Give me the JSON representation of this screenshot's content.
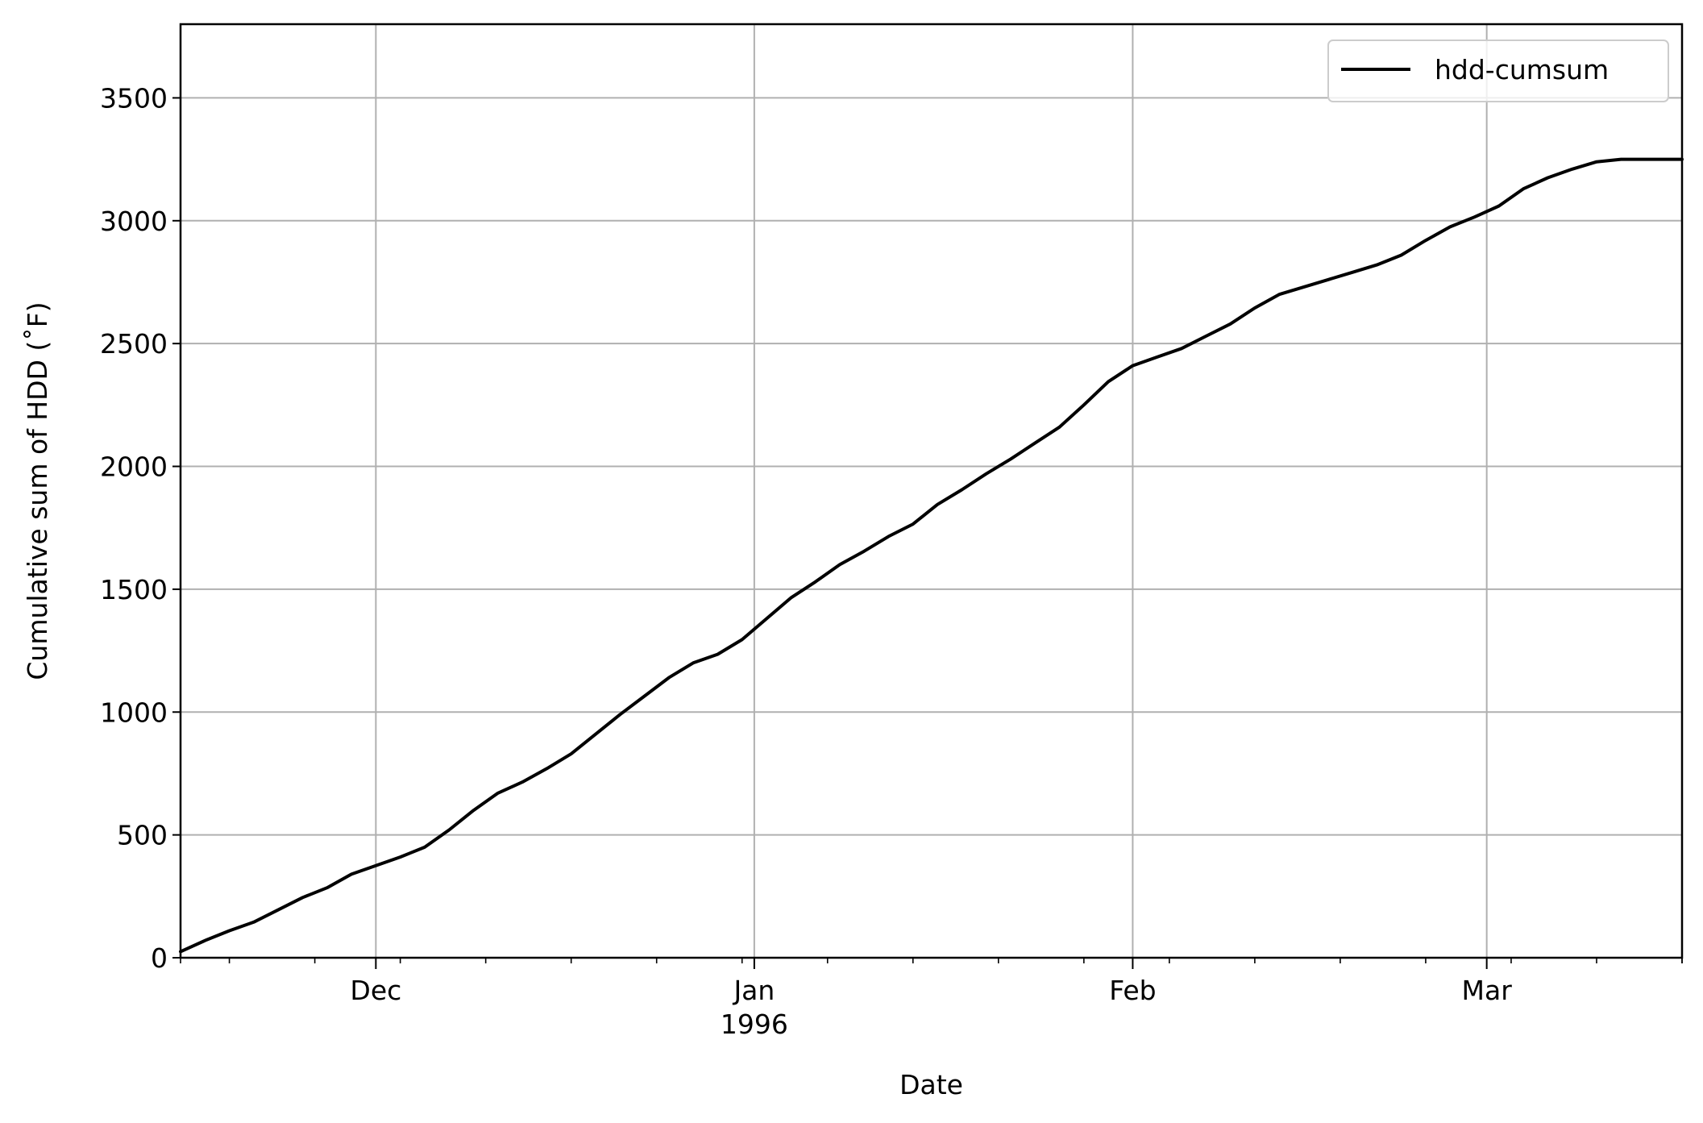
{
  "chart_data": {
    "type": "line",
    "title": "",
    "xlabel": "Date",
    "ylabel": "Cumulative sum of HDD (˚F)",
    "ylim": [
      0,
      3800
    ],
    "xlim": [
      "1995-11-15",
      "1996-03-17"
    ],
    "grid": true,
    "legend_position": "top-right",
    "y_ticks": [
      0,
      500,
      1000,
      1500,
      2000,
      2500,
      3000,
      3500
    ],
    "x_major_ticks": [
      {
        "date": "1995-12-01",
        "label": "Dec",
        "sublabel": ""
      },
      {
        "date": "1996-01-01",
        "label": "Jan",
        "sublabel": "1996"
      },
      {
        "date": "1996-02-01",
        "label": "Feb",
        "sublabel": ""
      },
      {
        "date": "1996-03-01",
        "label": "Mar",
        "sublabel": ""
      }
    ],
    "series": [
      {
        "name": "hdd-cumsum",
        "color": "#000000",
        "x": [
          "1995-11-15",
          "1995-11-17",
          "1995-11-19",
          "1995-11-21",
          "1995-11-23",
          "1995-11-25",
          "1995-11-27",
          "1995-11-29",
          "1995-12-01",
          "1995-12-03",
          "1995-12-05",
          "1995-12-07",
          "1995-12-09",
          "1995-12-11",
          "1995-12-13",
          "1995-12-15",
          "1995-12-17",
          "1995-12-19",
          "1995-12-21",
          "1995-12-23",
          "1995-12-25",
          "1995-12-27",
          "1995-12-29",
          "1995-12-31",
          "1996-01-02",
          "1996-01-04",
          "1996-01-06",
          "1996-01-08",
          "1996-01-10",
          "1996-01-12",
          "1996-01-14",
          "1996-01-16",
          "1996-01-18",
          "1996-01-20",
          "1996-01-22",
          "1996-01-24",
          "1996-01-26",
          "1996-01-28",
          "1996-01-30",
          "1996-02-01",
          "1996-02-03",
          "1996-02-05",
          "1996-02-07",
          "1996-02-09",
          "1996-02-11",
          "1996-02-13",
          "1996-02-15",
          "1996-02-17",
          "1996-02-19",
          "1996-02-21",
          "1996-02-23",
          "1996-02-25",
          "1996-02-27",
          "1996-02-29",
          "1996-03-02",
          "1996-03-04",
          "1996-03-06",
          "1996-03-08",
          "1996-03-10",
          "1996-03-12",
          "1996-03-14",
          "1996-03-16",
          "1996-03-17"
        ],
        "values": [
          25,
          70,
          110,
          145,
          195,
          245,
          285,
          340,
          375,
          410,
          450,
          520,
          600,
          670,
          715,
          770,
          830,
          910,
          990,
          1065,
          1140,
          1200,
          1235,
          1295,
          1380,
          1465,
          1530,
          1600,
          1655,
          1715,
          1765,
          1845,
          1905,
          1970,
          2030,
          2095,
          2160,
          2250,
          2345,
          2410,
          2445,
          2480,
          2530,
          2580,
          2645,
          2700,
          2730,
          2760,
          2790,
          2820,
          2860,
          2920,
          2975,
          3015,
          3060,
          3130,
          3175,
          3210,
          3240,
          3250,
          3250,
          3250,
          3250
        ]
      }
    ]
  }
}
